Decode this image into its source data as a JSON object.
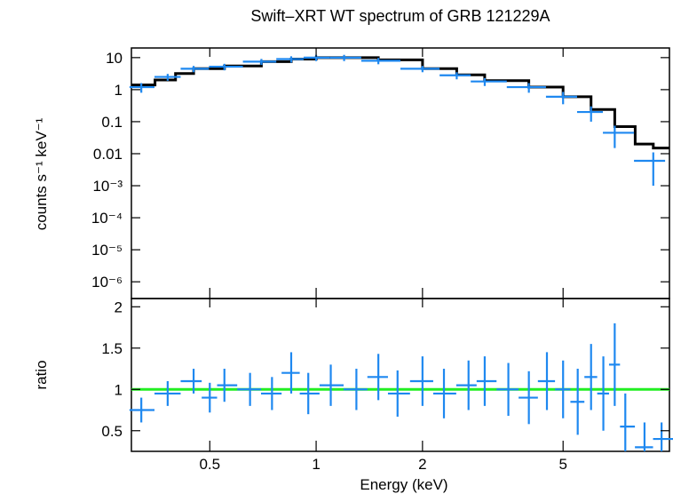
{
  "chart_data": [
    {
      "type": "scatter",
      "title": "Swift–XRT WT spectrum of GRB 121229A",
      "ylabel": "counts s⁻¹ keV⁻¹",
      "xscale": "log",
      "yscale": "log",
      "xlim": [
        0.3,
        10
      ],
      "ylim": [
        3e-07,
        20
      ],
      "x_ticks": [
        "0.5",
        "1",
        "2",
        "5"
      ],
      "y_ticks": [
        "10",
        "1",
        "0.1",
        "0.01",
        "10⁻³",
        "10⁻⁴",
        "10⁻⁵",
        "10⁻⁶"
      ],
      "colors": {
        "data": "#1e88f0",
        "model": "#000000"
      },
      "series": [
        {
          "kind": "data",
          "x": [
            0.32,
            0.38,
            0.45,
            0.55,
            0.7,
            0.85,
            1.0,
            1.2,
            1.5,
            2.0,
            2.5,
            3.0,
            4.0,
            5.0,
            6.0,
            7.0,
            9.0
          ],
          "y": [
            1.2,
            2.5,
            4.5,
            5.2,
            7.5,
            9.0,
            10.0,
            10.0,
            8.0,
            4.5,
            2.8,
            1.8,
            1.2,
            0.6,
            0.2,
            0.045,
            0.006
          ],
          "yerr": [
            0.4,
            0.6,
            1.0,
            1.2,
            1.6,
            2.0,
            2.2,
            2.2,
            1.8,
            1.0,
            0.7,
            0.5,
            0.4,
            0.25,
            0.1,
            0.03,
            0.005
          ]
        },
        {
          "kind": "model",
          "x": [
            0.3,
            0.35,
            0.4,
            0.45,
            0.55,
            0.7,
            0.85,
            1.0,
            1.2,
            1.5,
            2.0,
            2.5,
            3.0,
            4.0,
            5.0,
            6.0,
            7.0,
            8.0,
            9.0,
            10.0
          ],
          "y": [
            1.4,
            2.0,
            3.2,
            4.5,
            5.5,
            7.5,
            9.0,
            10.0,
            10.0,
            8.5,
            4.5,
            2.9,
            1.9,
            1.2,
            0.6,
            0.24,
            0.07,
            0.02,
            0.015,
            0.015
          ]
        }
      ]
    },
    {
      "type": "scatter",
      "xlabel": "Energy (keV)",
      "ylabel": "ratio",
      "xscale": "log",
      "xlim": [
        0.3,
        10
      ],
      "ylim": [
        0.25,
        2.1
      ],
      "x_ticks": [
        "0.5",
        "1",
        "2",
        "5"
      ],
      "y_ticks": [
        "2",
        "1.5",
        "1",
        "0.5"
      ],
      "reference_line": 1,
      "colors": {
        "data": "#1e88f0",
        "reference": "#22ee22"
      },
      "series": [
        {
          "kind": "data",
          "x": [
            0.32,
            0.38,
            0.45,
            0.5,
            0.55,
            0.65,
            0.75,
            0.85,
            0.95,
            1.1,
            1.3,
            1.5,
            1.7,
            2.0,
            2.3,
            2.7,
            3.0,
            3.5,
            4.0,
            4.5,
            5.0,
            5.5,
            6.0,
            6.5,
            7.0,
            7.5,
            8.5,
            9.5
          ],
          "y": [
            0.75,
            0.95,
            1.1,
            0.9,
            1.05,
            1.0,
            0.95,
            1.2,
            0.95,
            1.05,
            1.0,
            1.15,
            0.95,
            1.1,
            0.95,
            1.05,
            1.1,
            1.0,
            0.9,
            1.1,
            1.0,
            0.85,
            1.15,
            0.95,
            1.3,
            0.55,
            0.3,
            0.4
          ],
          "yerr": [
            0.15,
            0.15,
            0.15,
            0.18,
            0.2,
            0.2,
            0.2,
            0.25,
            0.25,
            0.25,
            0.25,
            0.28,
            0.28,
            0.3,
            0.3,
            0.3,
            0.3,
            0.32,
            0.32,
            0.35,
            0.35,
            0.4,
            0.4,
            0.45,
            0.5,
            0.4,
            0.3,
            0.2
          ]
        }
      ]
    }
  ]
}
